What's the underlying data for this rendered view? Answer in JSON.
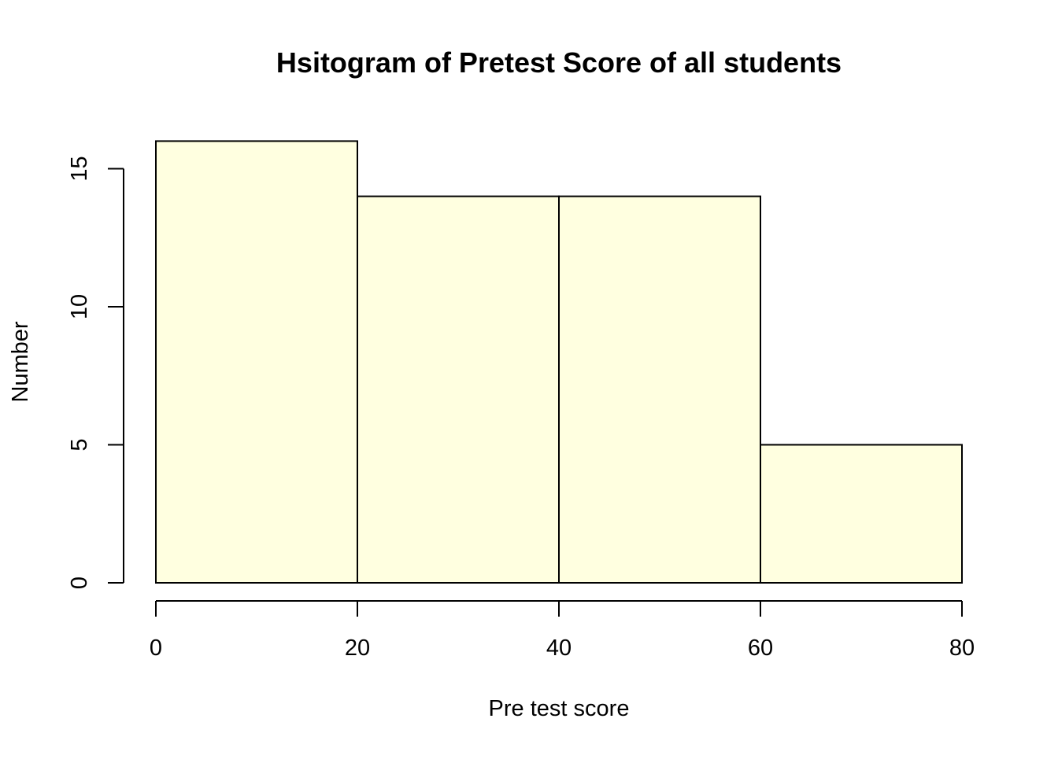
{
  "chart_data": {
    "type": "bar",
    "histogram": true,
    "title": "Hsitogram of Pretest Score of all students",
    "xlabel": "Pre test score",
    "ylabel": "Number",
    "bins": [
      {
        "from": 0,
        "to": 20,
        "count": 16
      },
      {
        "from": 20,
        "to": 40,
        "count": 14
      },
      {
        "from": 40,
        "to": 60,
        "count": 14
      },
      {
        "from": 60,
        "to": 80,
        "count": 5
      }
    ],
    "categories": [
      "0-20",
      "20-40",
      "40-60",
      "60-80"
    ],
    "values": [
      16,
      14,
      14,
      5
    ],
    "xlim": [
      0,
      80
    ],
    "ylim": [
      0,
      16
    ],
    "x_ticks": [
      "0",
      "20",
      "40",
      "60",
      "80"
    ],
    "y_ticks": [
      "0",
      "5",
      "10",
      "15"
    ],
    "grid": false,
    "legend": "none",
    "bar_fill": "#ffffe0",
    "bar_stroke": "#000000"
  }
}
